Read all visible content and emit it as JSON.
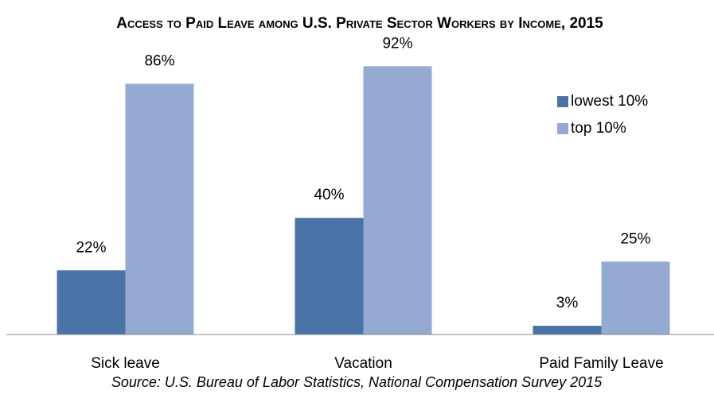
{
  "chart_data": {
    "type": "bar",
    "title": "Access to Paid Leave among U.S. Private Sector Workers by Income, 2015",
    "source": "Source: U.S. Bureau of Labor Statistics, National Compensation Survey 2015",
    "categories": [
      "Sick leave",
      "Vacation",
      "Paid Family Leave"
    ],
    "series": [
      {
        "name": "lowest 10%",
        "color": "#4a74a8",
        "values": [
          22,
          40,
          3
        ],
        "value_labels": [
          "22%",
          "40%",
          "3%"
        ]
      },
      {
        "name": "top 10%",
        "color": "#95aad3",
        "values": [
          86,
          92,
          25
        ],
        "value_labels": [
          "86%",
          "92%",
          "25%"
        ]
      }
    ],
    "ylim": [
      0,
      100
    ],
    "legend": "right"
  }
}
